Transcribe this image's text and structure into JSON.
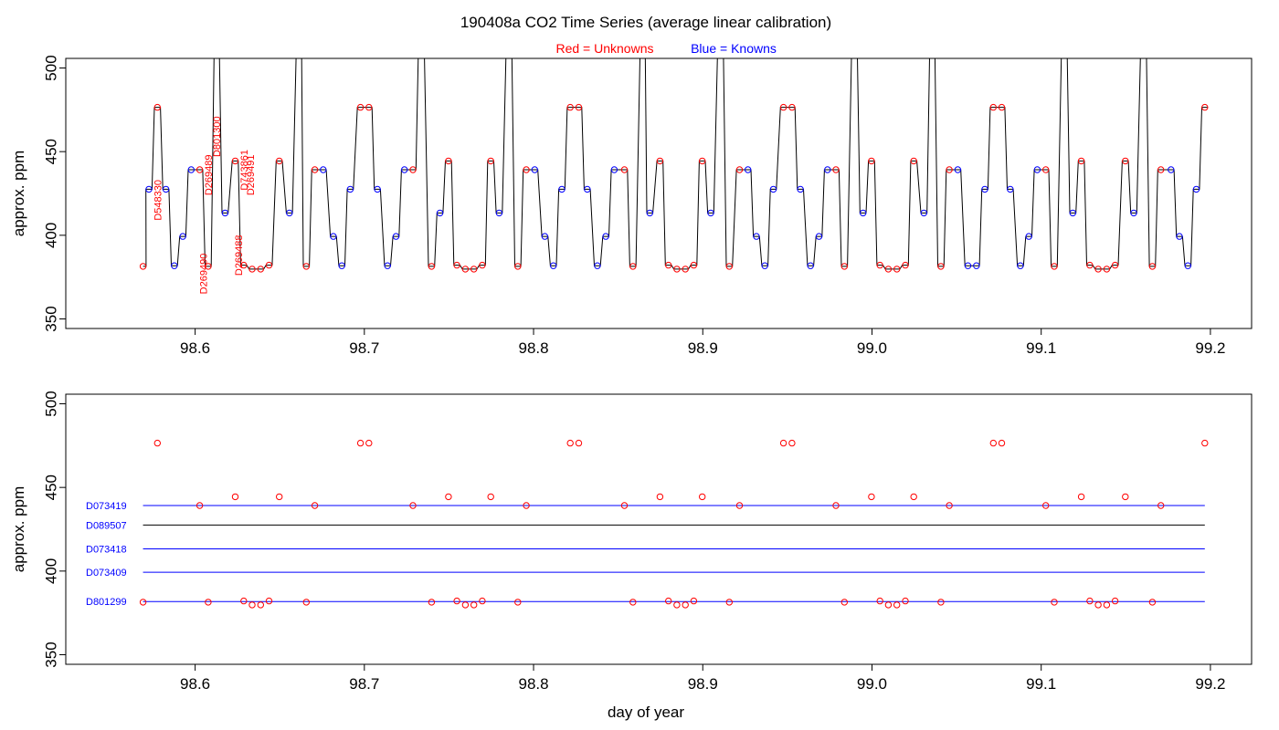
{
  "title": "190408a   CO2 Time Series (average linear calibration)",
  "legend": {
    "red_label": "Red = Unknowns",
    "blue_label": "Blue = Knowns",
    "red_color": "#ff0000",
    "blue_color": "#0000ff"
  },
  "xlabel": "day of year",
  "chart_data": [
    {
      "type": "line",
      "name": "top-panel",
      "ylabel": "approx. ppm",
      "xlim": [
        98.55,
        99.22
      ],
      "ylim": [
        345,
        500
      ],
      "xticks": [
        "98.6",
        "98.7",
        "98.8",
        "98.9",
        "99.0",
        "99.1",
        "99.2"
      ],
      "yticks": [
        "350",
        "400",
        "450",
        "500"
      ],
      "levels": {
        "R476": 476.5,
        "B427": 427.5,
        "B399": 399.3,
        "B381": 381.8,
        "B439": 439.2,
        "R439": 439.2,
        "R381": 381.4,
        "B413": 413.3,
        "R444": 444.4,
        "R380": 379.8,
        "R382": 382.1
      },
      "sequence": [
        [
          98.5692,
          "R381"
        ],
        [
          98.5727,
          "B427"
        ],
        [
          98.5777,
          "R476"
        ],
        [
          98.5827,
          "B427"
        ],
        [
          98.5877,
          "B381"
        ],
        [
          98.5927,
          "B399"
        ],
        [
          98.5977,
          "B439"
        ],
        [
          98.6027,
          "R439"
        ],
        [
          98.6077,
          "R381"
        ],
        [
          98.6127,
          "SPIKE"
        ],
        [
          98.6177,
          "B413"
        ],
        [
          98.6237,
          "R444"
        ],
        [
          98.6287,
          "R382"
        ],
        [
          98.6337,
          "R380"
        ],
        [
          98.6387,
          "R380"
        ],
        [
          98.6437,
          "R382"
        ],
        [
          98.6497,
          "R444"
        ],
        [
          98.6557,
          "B413"
        ],
        [
          98.6617,
          "SPIKE"
        ],
        [
          98.6657,
          "R381"
        ],
        [
          98.6707,
          "R439"
        ],
        [
          98.6757,
          "B439"
        ],
        [
          98.6817,
          "B399"
        ],
        [
          98.6867,
          "B381"
        ],
        [
          98.6917,
          "B427"
        ],
        [
          98.6977,
          "R476"
        ],
        [
          98.7027,
          "R476"
        ],
        [
          98.7077,
          "B427"
        ],
        [
          98.7137,
          "B381"
        ],
        [
          98.7187,
          "B399"
        ],
        [
          98.7237,
          "B439"
        ],
        [
          98.7287,
          "R439"
        ],
        [
          98.7337,
          "SPIKE"
        ],
        [
          98.7397,
          "R381"
        ],
        [
          98.7447,
          "B413"
        ],
        [
          98.7497,
          "R444"
        ],
        [
          98.7547,
          "R382"
        ],
        [
          98.7597,
          "R380"
        ],
        [
          98.7647,
          "R380"
        ],
        [
          98.7697,
          "R382"
        ],
        [
          98.7747,
          "R444"
        ],
        [
          98.7797,
          "B413"
        ],
        [
          98.7857,
          "SPIKE"
        ],
        [
          98.7907,
          "R381"
        ],
        [
          98.7957,
          "R439"
        ],
        [
          98.8007,
          "B439"
        ],
        [
          98.8067,
          "B399"
        ],
        [
          98.8117,
          "B381"
        ],
        [
          98.8167,
          "B427"
        ],
        [
          98.8217,
          "R476"
        ],
        [
          98.8267,
          "R476"
        ],
        [
          98.8317,
          "B427"
        ],
        [
          98.8377,
          "B381"
        ],
        [
          98.8427,
          "B399"
        ],
        [
          98.8477,
          "B439"
        ],
        [
          98.8537,
          "R439"
        ],
        [
          98.8587,
          "R381"
        ],
        [
          98.8647,
          "SPIKE"
        ],
        [
          98.8687,
          "B413"
        ],
        [
          98.8747,
          "R444"
        ],
        [
          98.8797,
          "R382"
        ],
        [
          98.8847,
          "R380"
        ],
        [
          98.8897,
          "R380"
        ],
        [
          98.8947,
          "R382"
        ],
        [
          98.8997,
          "R444"
        ],
        [
          98.9047,
          "B413"
        ],
        [
          98.9107,
          "SPIKE"
        ],
        [
          98.9157,
          "R381"
        ],
        [
          98.9217,
          "R439"
        ],
        [
          98.9267,
          "B439"
        ],
        [
          98.9317,
          "B399"
        ],
        [
          98.9367,
          "B381"
        ],
        [
          98.9417,
          "B427"
        ],
        [
          98.9477,
          "R476"
        ],
        [
          98.9527,
          "R476"
        ],
        [
          98.9577,
          "B427"
        ],
        [
          98.9637,
          "B381"
        ],
        [
          98.9687,
          "B399"
        ],
        [
          98.9737,
          "B439"
        ],
        [
          98.9787,
          "R439"
        ],
        [
          98.9837,
          "R381"
        ],
        [
          98.9897,
          "SPIKE"
        ],
        [
          98.9947,
          "B413"
        ],
        [
          98.9997,
          "R444"
        ],
        [
          99.0047,
          "R382"
        ],
        [
          99.0097,
          "R380"
        ],
        [
          99.0147,
          "R380"
        ],
        [
          99.0197,
          "R382"
        ],
        [
          99.0247,
          "R444"
        ],
        [
          99.0307,
          "B413"
        ],
        [
          99.0357,
          "SPIKE"
        ],
        [
          99.0407,
          "R381"
        ],
        [
          99.0457,
          "R439"
        ],
        [
          99.0507,
          "B439"
        ],
        [
          99.0567,
          "B381"
        ],
        [
          99.0617,
          "B381"
        ],
        [
          99.0667,
          "B427"
        ],
        [
          99.0717,
          "R476"
        ],
        [
          99.0767,
          "R476"
        ],
        [
          99.0817,
          "B427"
        ],
        [
          99.0877,
          "B381"
        ],
        [
          99.0927,
          "B399"
        ],
        [
          99.0977,
          "B439"
        ],
        [
          99.1027,
          "R439"
        ],
        [
          99.1077,
          "R381"
        ],
        [
          99.1137,
          "SPIKE"
        ],
        [
          99.1187,
          "B413"
        ],
        [
          99.1237,
          "R444"
        ],
        [
          99.1287,
          "R382"
        ],
        [
          99.1337,
          "R380"
        ],
        [
          99.1387,
          "R380"
        ],
        [
          99.1437,
          "R382"
        ],
        [
          99.1497,
          "R444"
        ],
        [
          99.1547,
          "B413"
        ],
        [
          99.1607,
          "SPIKE"
        ],
        [
          99.1657,
          "R381"
        ],
        [
          99.1707,
          "R439"
        ],
        [
          99.1767,
          "B439"
        ],
        [
          99.1817,
          "B399"
        ],
        [
          99.1867,
          "B381"
        ],
        [
          99.1917,
          "B427"
        ],
        [
          99.1967,
          "R476"
        ]
      ],
      "annotations": [
        {
          "text": "D548330",
          "x": 98.5777,
          "y": 421
        },
        {
          "text": "D269490",
          "x": 98.6047,
          "y": 377
        },
        {
          "text": "D269489",
          "x": 98.6077,
          "y": 436
        },
        {
          "text": "D801300",
          "x": 98.6127,
          "y": 459
        },
        {
          "text": "D269488",
          "x": 98.6257,
          "y": 388
        },
        {
          "text": "D743861",
          "x": 98.6287,
          "y": 439
        },
        {
          "text": "D269491",
          "x": 98.6327,
          "y": 436
        }
      ]
    },
    {
      "type": "scatter",
      "name": "bottom-panel",
      "ylabel": "approx. ppm",
      "xlim": [
        98.55,
        99.22
      ],
      "ylim": [
        345,
        500
      ],
      "xticks": [
        "98.6",
        "98.7",
        "98.8",
        "98.9",
        "99.0",
        "99.1",
        "99.2"
      ],
      "yticks": [
        "350",
        "400",
        "450",
        "500"
      ],
      "standards": [
        {
          "name": "D073419",
          "y": 439.2,
          "color": "#0000ff"
        },
        {
          "name": "D089507",
          "y": 427.5,
          "color": "#000000"
        },
        {
          "name": "D073418",
          "y": 413.3,
          "color": "#0000ff"
        },
        {
          "name": "D073409",
          "y": 399.3,
          "color": "#0000ff"
        },
        {
          "name": "D801299",
          "y": 381.8,
          "color": "#0000ff"
        }
      ],
      "standard_line_x": [
        98.5692,
        99.1967
      ]
    }
  ]
}
